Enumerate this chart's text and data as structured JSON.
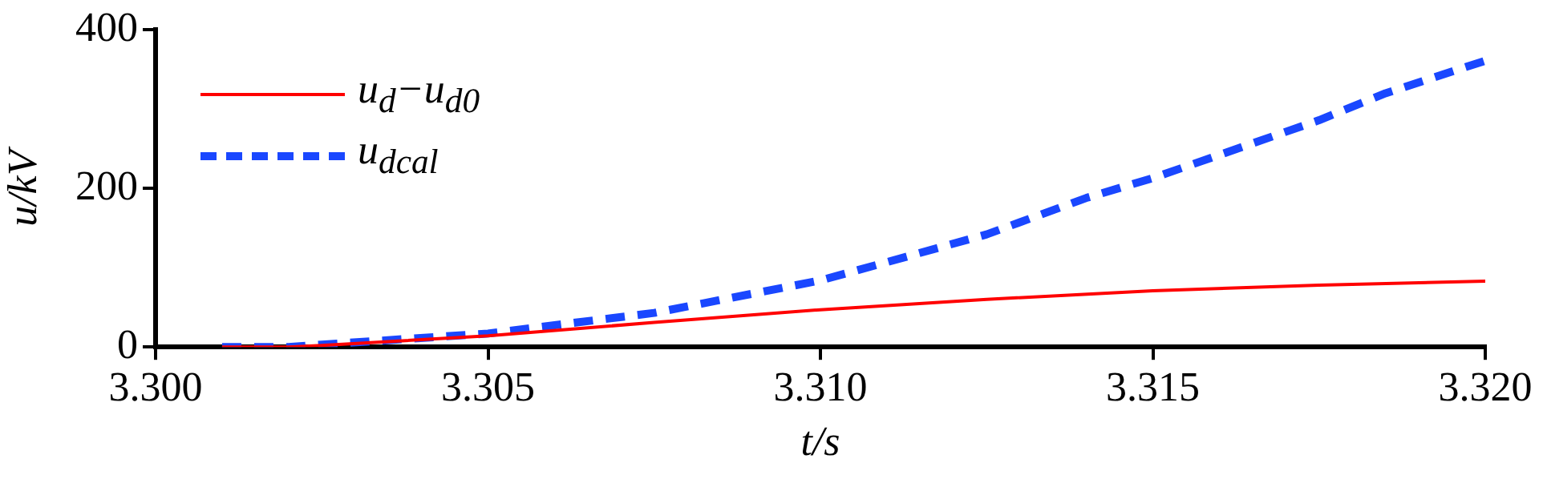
{
  "chart_data": {
    "type": "line",
    "xlabel": "t/s",
    "ylabel": "u/kV",
    "xlim": [
      3.3,
      3.32
    ],
    "ylim": [
      0,
      400
    ],
    "xticks": [
      {
        "value": 3.3,
        "label": "3.300"
      },
      {
        "value": 3.305,
        "label": "3.305"
      },
      {
        "value": 3.31,
        "label": "3.310"
      },
      {
        "value": 3.315,
        "label": "3.315"
      },
      {
        "value": 3.32,
        "label": "3.320"
      }
    ],
    "yticks": [
      0,
      200,
      400
    ],
    "grid": false,
    "legend": "top left",
    "marker": "none",
    "series": [
      {
        "name": "u$_{d}$−u$_{d0}$",
        "color": "#ff0000",
        "line_style": "solid",
        "x": [
          3.301,
          3.302,
          3.3025,
          3.305,
          3.3075,
          3.31,
          3.3125,
          3.315,
          3.3175,
          3.32
        ],
        "values": [
          0,
          0,
          2,
          14,
          31,
          47,
          60,
          71,
          78,
          83
        ]
      },
      {
        "name": "u$_{dcal}$",
        "color": "#1a47ff",
        "line_style": "dashed",
        "x": [
          3.301,
          3.302,
          3.3025,
          3.305,
          3.3075,
          3.31,
          3.311,
          3.3125,
          3.314,
          3.315,
          3.3175,
          3.3185,
          3.32
        ],
        "values": [
          0,
          0,
          3,
          17,
          43,
          84,
          107,
          142,
          188,
          213,
          286,
          320,
          361
        ]
      }
    ]
  }
}
